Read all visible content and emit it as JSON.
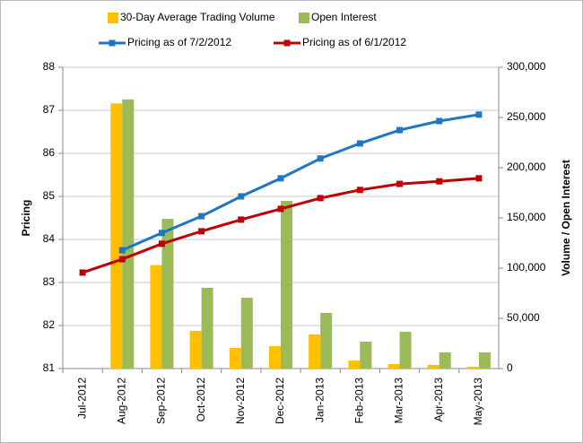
{
  "chart_data": {
    "type": "bar_line_combo",
    "categories": [
      "Jul-2012",
      "Aug-2012",
      "Sep-2012",
      "Oct-2012",
      "Nov-2012",
      "Dec-2012",
      "Jan-2013",
      "Feb-2013",
      "Mar-2013",
      "Apr-2013",
      "May-2013"
    ],
    "ylabel": "Pricing",
    "y2label": "Volume / Open Interest",
    "ylim": [
      81,
      88
    ],
    "yticks": [
      81,
      82,
      83,
      84,
      85,
      86,
      87,
      88
    ],
    "y2lim": [
      0,
      300000
    ],
    "y2ticks": [
      0,
      {
        "value": 50000,
        "label": "50,000"
      },
      {
        "value": 100000,
        "label": "100,000"
      },
      {
        "value": 150000,
        "label": "150,000"
      },
      {
        "value": 200000,
        "label": "200,000"
      },
      {
        "value": 250000,
        "label": "250,000"
      },
      {
        "value": 300000,
        "label": "300,000"
      }
    ],
    "grid": true,
    "series": [
      {
        "name": "30-Day Average Trading Volume",
        "type": "bar",
        "axis": "y2",
        "color": "#FFC000",
        "values": [
          null,
          264000,
          103000,
          37500,
          20500,
          22300,
          34000,
          8000,
          4500,
          3600,
          1800
        ]
      },
      {
        "name": "Open Interest",
        "type": "bar",
        "axis": "y2",
        "color": "#9BBB59",
        "values": [
          null,
          268000,
          149000,
          80400,
          70500,
          167000,
          55400,
          26800,
          36600,
          16100,
          16100
        ]
      },
      {
        "name": "Pricing as of 7/2/2012",
        "type": "line",
        "color": "#1F77C4",
        "values": [
          null,
          83.75,
          84.15,
          84.54,
          85.0,
          85.42,
          85.88,
          86.23,
          86.54,
          86.75,
          86.9
        ]
      },
      {
        "name": "Pricing as of 6/1/2012",
        "type": "line",
        "color": "#C00000",
        "values": [
          83.23,
          83.54,
          83.9,
          84.19,
          84.46,
          84.71,
          84.96,
          85.15,
          85.29,
          85.35,
          85.42
        ]
      }
    ]
  }
}
